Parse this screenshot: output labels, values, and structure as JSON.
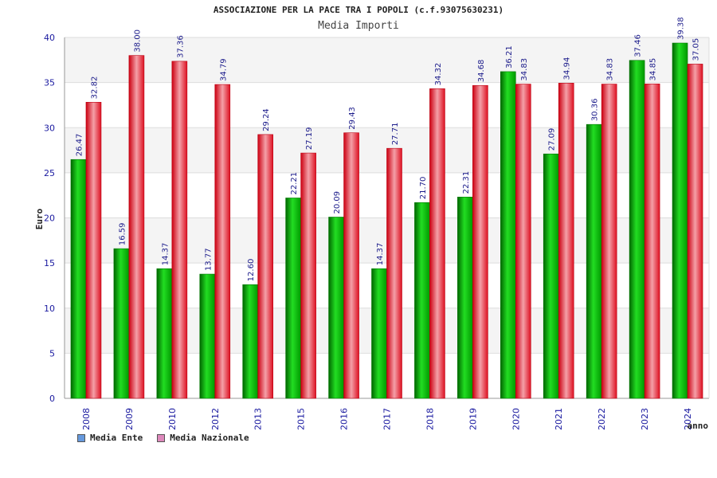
{
  "chart_data": {
    "type": "bar",
    "title": "ASSOCIAZIONE PER LA PACE TRA I POPOLI (c.f.93075630231)",
    "subtitle": "Media Importi",
    "xlabel": "anno",
    "ylabel": "Euro",
    "ylim": [
      0,
      40
    ],
    "yticks": [
      0,
      5,
      10,
      15,
      20,
      25,
      30,
      35,
      40
    ],
    "categories": [
      "2008",
      "2009",
      "2010",
      "2012",
      "2013",
      "2015",
      "2016",
      "2017",
      "2018",
      "2019",
      "2020",
      "2021",
      "2022",
      "2023",
      "2024"
    ],
    "series": [
      {
        "name": "Media Ente",
        "color": "#00aa00",
        "values": [
          26.47,
          16.59,
          14.37,
          13.77,
          12.6,
          22.21,
          20.09,
          14.37,
          21.7,
          22.31,
          36.21,
          27.09,
          30.36,
          37.46,
          39.38
        ],
        "labels": [
          "26.47",
          "16.59",
          "14.37",
          "13.77",
          "12.60",
          "22.21",
          "20.09",
          "14.37",
          "21.70",
          "22.31",
          "36.21",
          "27.09",
          "30.36",
          "37.46",
          "39.38"
        ]
      },
      {
        "name": "Media Nazionale",
        "color": "#e0202e",
        "values": [
          32.82,
          38.0,
          37.36,
          34.79,
          29.24,
          27.19,
          29.43,
          27.71,
          34.32,
          34.68,
          34.83,
          34.94,
          34.83,
          34.85,
          37.05
        ],
        "labels": [
          "32.82",
          "38.00",
          "37.36",
          "34.79",
          "29.24",
          "27.19",
          "29.43",
          "27.71",
          "34.32",
          "34.68",
          "34.83",
          "34.94",
          "34.83",
          "34.85",
          "37.05"
        ]
      }
    ],
    "legend": [
      {
        "name": "Media Ente",
        "color": "#6699dd"
      },
      {
        "name": "Media Nazionale",
        "color": "#dd88bb"
      }
    ],
    "grid": true,
    "legend_position": "bottom-left"
  }
}
